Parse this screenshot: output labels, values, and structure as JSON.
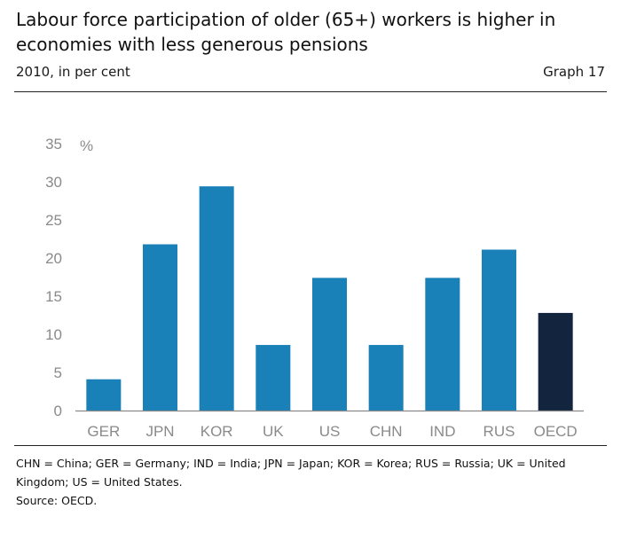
{
  "header": {
    "title": "Labour force participation of older (65+) workers is higher in economies with less generous pensions",
    "subtitle": "2010, in per cent",
    "graph_number": "Graph 17"
  },
  "footer": {
    "note": "CHN = China; GER = Germany; IND = India; JPN = Japan; KOR = Korea; RUS = Russia; UK = United Kingdom; US = United States.",
    "source": "Source: OECD."
  },
  "colors": {
    "bar": "#1a80b8",
    "highlight_bar": "#13243f",
    "axis": "#8a8a8a"
  },
  "chart_data": {
    "type": "bar",
    "title": "Labour force participation of older (65+) workers is higher in economies with less generous pensions",
    "subtitle": "2010, in per cent",
    "unit_label": "%",
    "categories": [
      "GER",
      "JPN",
      "KOR",
      "UK",
      "US",
      "CHN",
      "IND",
      "RUS",
      "OECD"
    ],
    "values": [
      4.1,
      21.8,
      29.4,
      8.6,
      17.4,
      8.6,
      17.4,
      21.1,
      12.8
    ],
    "highlight": "OECD",
    "ylim": [
      0,
      35
    ],
    "yticks": [
      0,
      5,
      10,
      15,
      20,
      25,
      30,
      35
    ],
    "grid": false,
    "legend": "none"
  }
}
